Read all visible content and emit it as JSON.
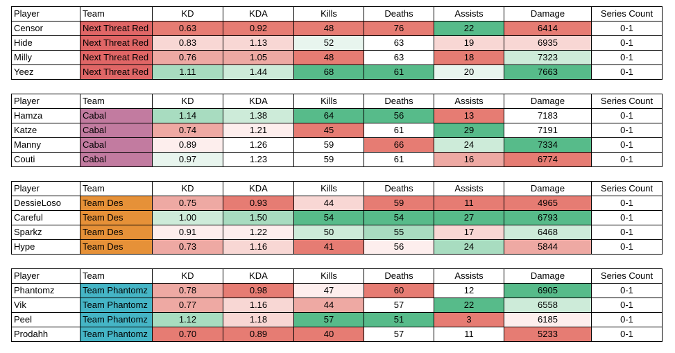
{
  "headers": [
    "Player",
    "Team",
    "KD",
    "KDA",
    "Kills",
    "Deaths",
    "Assists",
    "Damage",
    "Series Count"
  ],
  "colors": {
    "red_strong": "#e67c73",
    "red_medium": "#eea9a3",
    "red_light": "#f8d7d4",
    "red_faint": "#fdeeed",
    "green_strong": "#57bb8a",
    "green_medium": "#a8dcc0",
    "green_light": "#cdebd9",
    "green_faint": "#e8f5ee",
    "white": "#ffffff",
    "team_next_threat_red": "#e06666",
    "team_cabal": "#c27ba0",
    "team_des": "#e69138",
    "team_phantomz": "#45b5c6"
  },
  "tables": [
    {
      "team_color": "team_next_threat_red",
      "rows": [
        {
          "player": "Censor",
          "team": "Next Threat Red",
          "kd": "0.63",
          "kda": "0.92",
          "kills": "48",
          "deaths": "76",
          "assists": "22",
          "damage": "6414",
          "series": "0-1",
          "fills": {
            "kd": "red_strong",
            "kda": "red_strong",
            "kills": "red_strong",
            "deaths": "red_strong",
            "assists": "green_strong",
            "damage": "red_strong"
          }
        },
        {
          "player": "Hide",
          "team": "Next Threat Red",
          "kd": "0.83",
          "kda": "1.13",
          "kills": "52",
          "deaths": "63",
          "assists": "19",
          "damage": "6935",
          "series": "0-1",
          "fills": {
            "kd": "red_light",
            "kda": "red_light",
            "kills": "green_faint",
            "deaths": "white",
            "assists": "red_light",
            "damage": "red_light"
          }
        },
        {
          "player": "Milly",
          "team": "Next Threat Red",
          "kd": "0.76",
          "kda": "1.05",
          "kills": "48",
          "deaths": "63",
          "assists": "18",
          "damage": "7323",
          "series": "0-1",
          "fills": {
            "kd": "red_medium",
            "kda": "red_medium",
            "kills": "red_strong",
            "deaths": "white",
            "assists": "red_strong",
            "damage": "green_light"
          }
        },
        {
          "player": "Yeez",
          "team": "Next Threat Red",
          "kd": "1.11",
          "kda": "1.44",
          "kills": "68",
          "deaths": "61",
          "assists": "20",
          "damage": "7663",
          "series": "0-1",
          "fills": {
            "kd": "green_medium",
            "kda": "green_light",
            "kills": "green_strong",
            "deaths": "green_strong",
            "assists": "green_faint",
            "damage": "green_strong"
          }
        }
      ]
    },
    {
      "team_color": "team_cabal",
      "rows": [
        {
          "player": "Hamza",
          "team": "Cabal",
          "kd": "1.14",
          "kda": "1.38",
          "kills": "64",
          "deaths": "56",
          "assists": "13",
          "damage": "7183",
          "series": "0-1",
          "fills": {
            "kd": "green_medium",
            "kda": "green_light",
            "kills": "green_strong",
            "deaths": "green_strong",
            "assists": "red_strong",
            "damage": "white"
          }
        },
        {
          "player": "Katze",
          "team": "Cabal",
          "kd": "0.74",
          "kda": "1.21",
          "kills": "45",
          "deaths": "61",
          "assists": "29",
          "damage": "7191",
          "series": "0-1",
          "fills": {
            "kd": "red_medium",
            "kda": "red_faint",
            "kills": "red_strong",
            "deaths": "white",
            "assists": "green_strong",
            "damage": "white"
          }
        },
        {
          "player": "Manny",
          "team": "Cabal",
          "kd": "0.89",
          "kda": "1.26",
          "kills": "59",
          "deaths": "66",
          "assists": "24",
          "damage": "7334",
          "series": "0-1",
          "fills": {
            "kd": "red_faint",
            "kda": "white",
            "kills": "white",
            "deaths": "red_strong",
            "assists": "green_light",
            "damage": "green_strong"
          }
        },
        {
          "player": "Couti",
          "team": "Cabal",
          "kd": "0.97",
          "kda": "1.23",
          "kills": "59",
          "deaths": "61",
          "assists": "16",
          "damage": "6774",
          "series": "0-1",
          "fills": {
            "kd": "green_faint",
            "kda": "white",
            "kills": "white",
            "deaths": "white",
            "assists": "red_medium",
            "damage": "red_strong"
          }
        }
      ]
    },
    {
      "team_color": "team_des",
      "rows": [
        {
          "player": "DessieLoso",
          "team": "Team Des",
          "kd": "0.75",
          "kda": "0.93",
          "kills": "44",
          "deaths": "59",
          "assists": "11",
          "damage": "4965",
          "series": "0-1",
          "fills": {
            "kd": "red_medium",
            "kda": "red_strong",
            "kills": "red_light",
            "deaths": "red_strong",
            "assists": "red_strong",
            "damage": "red_strong"
          }
        },
        {
          "player": "Careful",
          "team": "Team Des",
          "kd": "1.00",
          "kda": "1.50",
          "kills": "54",
          "deaths": "54",
          "assists": "27",
          "damage": "6793",
          "series": "0-1",
          "fills": {
            "kd": "green_light",
            "kda": "green_medium",
            "kills": "green_strong",
            "deaths": "green_strong",
            "assists": "green_strong",
            "damage": "green_strong"
          }
        },
        {
          "player": "Sparkz",
          "team": "Team Des",
          "kd": "0.91",
          "kda": "1.22",
          "kills": "50",
          "deaths": "55",
          "assists": "17",
          "damage": "6468",
          "series": "0-1",
          "fills": {
            "kd": "red_faint",
            "kda": "red_faint",
            "kills": "green_light",
            "deaths": "green_medium",
            "assists": "red_light",
            "damage": "green_light"
          }
        },
        {
          "player": "Hype",
          "team": "Team Des",
          "kd": "0.73",
          "kda": "1.16",
          "kills": "41",
          "deaths": "56",
          "assists": "24",
          "damage": "5844",
          "series": "0-1",
          "fills": {
            "kd": "red_medium",
            "kda": "red_light",
            "kills": "red_strong",
            "deaths": "red_faint",
            "assists": "green_medium",
            "damage": "red_medium"
          }
        }
      ]
    },
    {
      "team_color": "team_phantomz",
      "rows": [
        {
          "player": "Phantomz",
          "team": "Team Phantomz",
          "kd": "0.78",
          "kda": "0.98",
          "kills": "47",
          "deaths": "60",
          "assists": "12",
          "damage": "6905",
          "series": "0-1",
          "fills": {
            "kd": "red_medium",
            "kda": "red_strong",
            "kills": "red_faint",
            "deaths": "red_strong",
            "assists": "white",
            "damage": "green_strong"
          }
        },
        {
          "player": "Vik",
          "team": "Team Phantomz",
          "kd": "0.77",
          "kda": "1.16",
          "kills": "44",
          "deaths": "57",
          "assists": "22",
          "damage": "6558",
          "series": "0-1",
          "fills": {
            "kd": "red_medium",
            "kda": "red_light",
            "kills": "red_medium",
            "deaths": "white",
            "assists": "green_strong",
            "damage": "green_light"
          }
        },
        {
          "player": "Peel",
          "team": "Team Phantomz",
          "kd": "1.12",
          "kda": "1.18",
          "kills": "57",
          "deaths": "51",
          "assists": "3",
          "damage": "6185",
          "series": "0-1",
          "fills": {
            "kd": "green_medium",
            "kda": "red_light",
            "kills": "green_strong",
            "deaths": "green_strong",
            "assists": "red_strong",
            "damage": "red_faint"
          }
        },
        {
          "player": "Prodahh",
          "team": "Team Phantomz",
          "kd": "0.70",
          "kda": "0.89",
          "kills": "40",
          "deaths": "57",
          "assists": "11",
          "damage": "5233",
          "series": "0-1",
          "fills": {
            "kd": "red_strong",
            "kda": "red_strong",
            "kills": "red_strong",
            "deaths": "white",
            "assists": "white",
            "damage": "red_strong"
          }
        }
      ]
    }
  ]
}
